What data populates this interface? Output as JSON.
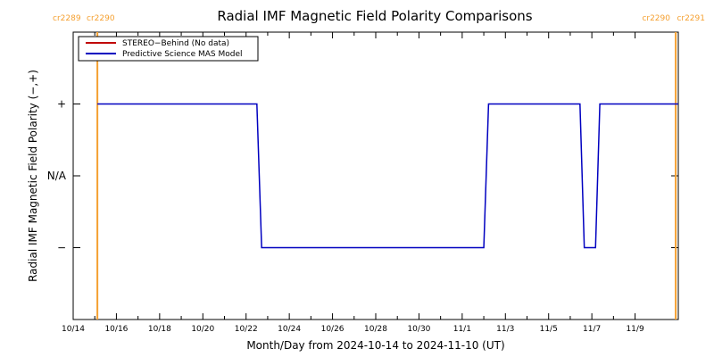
{
  "chart_data": {
    "type": "line",
    "title": "Radial IMF Magnetic Field Polarity Comparisons",
    "xlabel": "Month/Day from 2024-10-14 to 2024-11-10 (UT)",
    "ylabel": "Radial IMF Magnetic Field Polarity (−,+)",
    "xlim": [
      0,
      28
    ],
    "ylim": [
      -2,
      2
    ],
    "x_ticks": [
      {
        "x": 0,
        "label": "10/14"
      },
      {
        "x": 2,
        "label": "10/16"
      },
      {
        "x": 4,
        "label": "10/18"
      },
      {
        "x": 6,
        "label": "10/20"
      },
      {
        "x": 8,
        "label": "10/22"
      },
      {
        "x": 10,
        "label": "10/24"
      },
      {
        "x": 12,
        "label": "10/26"
      },
      {
        "x": 14,
        "label": "10/28"
      },
      {
        "x": 16,
        "label": "10/30"
      },
      {
        "x": 18,
        "label": "11/1"
      },
      {
        "x": 20,
        "label": "11/3"
      },
      {
        "x": 22,
        "label": "11/5"
      },
      {
        "x": 24,
        "label": "11/7"
      },
      {
        "x": 26,
        "label": "11/9"
      }
    ],
    "y_ticks": [
      {
        "y": 1,
        "label": "+"
      },
      {
        "y": 0,
        "label": "N/A"
      },
      {
        "y": -1,
        "label": "−"
      }
    ],
    "carrington_lines": [
      {
        "x": 1.12,
        "left_label": "cr2289",
        "right_label": "cr2290"
      },
      {
        "x": 27.88,
        "left_label": "cr2290",
        "right_label": "cr2291"
      }
    ],
    "carrington_color": "#f5a030",
    "series": [
      {
        "name": "STEREO−Behind (No data)",
        "color": "#c00000",
        "x": [],
        "y": []
      },
      {
        "name": "Predictive Science MAS Model",
        "color": "#0000c0",
        "x": [
          1.12,
          8.5,
          8.72,
          19.0,
          19.22,
          23.45,
          23.65,
          24.17,
          24.37,
          28
        ],
        "y": [
          1,
          1,
          -1,
          -1,
          1,
          1,
          -1,
          -1,
          1,
          1
        ]
      }
    ],
    "legend_position": "top-left",
    "grid": false
  }
}
